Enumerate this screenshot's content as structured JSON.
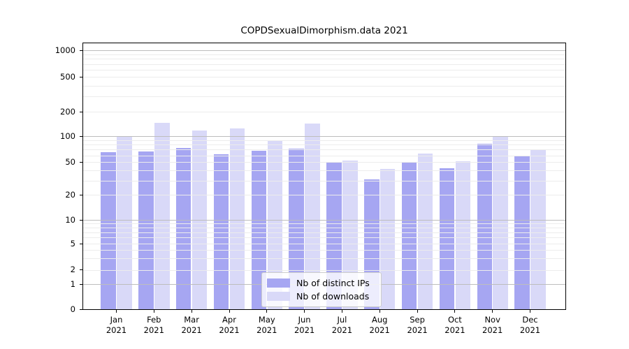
{
  "title": "COPDSexualDimorphism.data 2021",
  "chart_data": {
    "type": "bar",
    "title": "COPDSexualDimorphism.data 2021",
    "categories": [
      "Jan 2021",
      "Feb 2021",
      "Mar 2021",
      "Apr 2021",
      "May 2021",
      "Jun 2021",
      "Jul 2021",
      "Aug 2021",
      "Sep 2021",
      "Oct 2021",
      "Nov 2021",
      "Dec 2021"
    ],
    "series": [
      {
        "name": "Nb of distinct IPs",
        "color": "#a6a6f2",
        "values": [
          66,
          67,
          74,
          62,
          69,
          72,
          51,
          31,
          51,
          43,
          82,
          59
        ]
      },
      {
        "name": "Nb of downloads",
        "color": "#d9d9f8",
        "values": [
          101,
          147,
          119,
          125,
          89,
          146,
          53,
          42,
          63,
          52,
          100,
          71
        ]
      }
    ],
    "xlabel": "",
    "ylabel": "",
    "ylim": [
      0,
      1000
    ],
    "y_ticks": [
      0,
      1,
      2,
      5,
      10,
      20,
      50,
      100,
      200,
      500,
      1000
    ],
    "y_scale": "log-like (decade ticks 1-2-5) with zero baseline",
    "grid": "horizontal, major decades darker + faint minor lines, drawn over bars",
    "legend_position": "bottom-center inside plot"
  },
  "legend": {
    "items": [
      {
        "label": "Nb of distinct IPs",
        "color": "#a6a6f2"
      },
      {
        "label": "Nb of downloads",
        "color": "#d9d9f8"
      }
    ]
  },
  "colors": {
    "ips_bar": "#a6a6f2",
    "downloads_bar": "#d9d9f8",
    "major_grid": "#bdbdbd",
    "minor_grid": "#ececec",
    "axis": "#000000",
    "legend_border": "#cccccc",
    "background": "#ffffff"
  }
}
